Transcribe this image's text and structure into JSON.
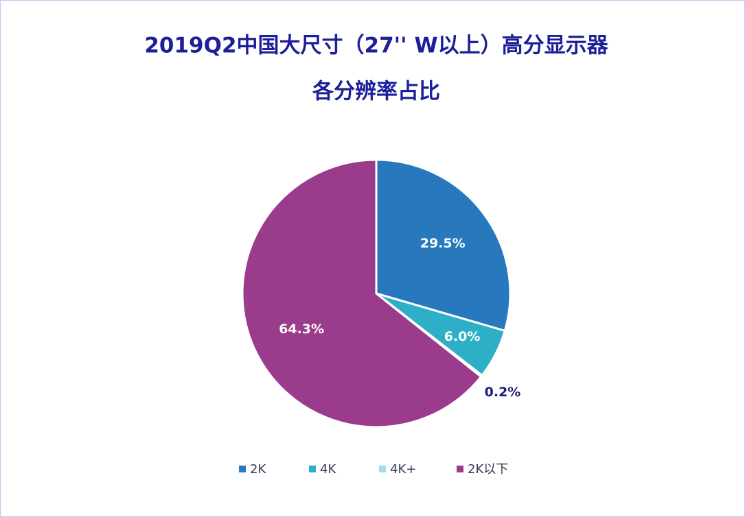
{
  "chart_data": {
    "type": "pie",
    "title": [
      "2019Q2中国大尺寸（27'' W以上）高分显示器",
      "各分辨率占比"
    ],
    "categories": [
      "2K",
      "4K",
      "4K+",
      "2K以下"
    ],
    "values": [
      29.5,
      6.0,
      0.2,
      64.3
    ],
    "value_labels": [
      "29.5%",
      "6.0%",
      "0.2%",
      "64.3%"
    ],
    "colors": [
      "#2878bd",
      "#2eafc8",
      "#a3dce6",
      "#9b3b8c"
    ],
    "legend": "bottom"
  }
}
